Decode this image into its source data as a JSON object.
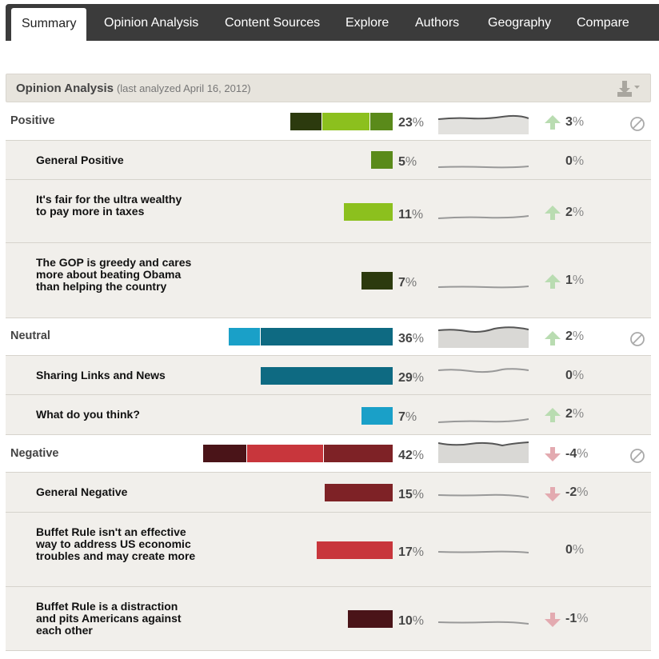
{
  "tabs": [
    {
      "label": "Summary",
      "active": true
    },
    {
      "label": "Opinion Analysis"
    },
    {
      "label": "Content Sources"
    },
    {
      "label": "Explore"
    },
    {
      "label": "Authors"
    },
    {
      "label": "Geography"
    },
    {
      "label": "Compare"
    }
  ],
  "panel": {
    "title": "Opinion Analysis",
    "subtitle": "(last analyzed April 16, 2012)",
    "download_icon": "download-icon"
  },
  "colors": {
    "pos_dark": "#2c3a0e",
    "pos_light": "#8cc01e",
    "pos_mid": "#5a8a1a",
    "neu_light": "#1aa0c8",
    "neu_dark": "#0e6a82",
    "neg_dark": "#4a1418",
    "neg_light": "#c8363c",
    "neg_mid": "#7e2226",
    "up_arrow": "#b9dcb1",
    "down_arrow": "#e3aab0"
  },
  "rows": {
    "positive": {
      "label": "Positive",
      "pct": "23",
      "trend": "up",
      "change": "3"
    },
    "general_positive": {
      "label": "General Positive",
      "pct": "5",
      "trend": "none",
      "change": "0"
    },
    "fair_wealthy": {
      "label": "It's fair for the ultra wealthy to pay more in taxes",
      "pct": "11",
      "trend": "up",
      "change": "2"
    },
    "gop_greedy": {
      "label": "The GOP is greedy and cares more about beating Obama than helping the country",
      "pct": "7",
      "trend": "up",
      "change": "1"
    },
    "neutral": {
      "label": "Neutral",
      "pct": "36",
      "trend": "up",
      "change": "2"
    },
    "sharing_links": {
      "label": "Sharing Links and News",
      "pct": "29",
      "trend": "none",
      "change": "0"
    },
    "what_think": {
      "label": "What do you think?",
      "pct": "7",
      "trend": "up",
      "change": "2"
    },
    "negative": {
      "label": "Negative",
      "pct": "42",
      "trend": "down",
      "change": "-4"
    },
    "general_negative": {
      "label": "General Negative",
      "pct": "15",
      "trend": "down",
      "change": "-2"
    },
    "buffet_not_effective": {
      "label": "Buffet Rule isn't an effective way to address US economic troubles and may create more",
      "pct": "17",
      "trend": "none",
      "change": "0"
    },
    "buffet_distraction": {
      "label": "Buffet Rule is a distraction and pits Americans against each other",
      "pct": "10",
      "trend": "down",
      "change": "-1"
    }
  },
  "percent_sign": "%"
}
